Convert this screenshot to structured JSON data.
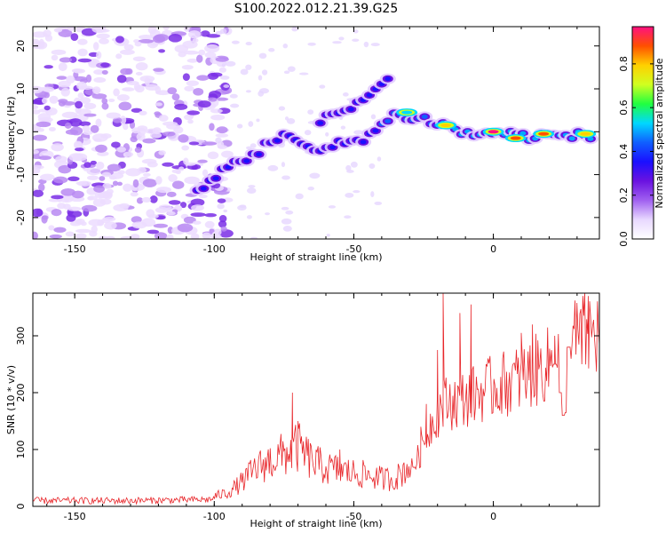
{
  "title": "S100.2022.012.21.39.G25",
  "colors": {
    "snr_line": "#e8262a",
    "spectrum_low": "#a070e8",
    "colormap": [
      "#ffffff",
      "#e8d8ff",
      "#a060f0",
      "#6a12e0",
      "#1a10ff",
      "#1060ff",
      "#00d8ff",
      "#20ff40",
      "#d0ff20",
      "#ffd000",
      "#ff5000",
      "#ff1080"
    ]
  },
  "chart_data": [
    {
      "type": "heatmap",
      "name": "spectrogram",
      "xlabel": "Height of straight line (km)",
      "ylabel": "Frequency (Hz)",
      "xlim": [
        -165,
        38
      ],
      "ylim": [
        -25,
        24.5
      ],
      "xticks": [
        -150,
        -100,
        -50,
        0
      ],
      "yticks": [
        -20,
        -10,
        0,
        10,
        20
      ],
      "colorbar": {
        "label": "Normalized spectral amplitude",
        "range": [
          0,
          0.97
        ],
        "ticks": [
          "0.0",
          "0.2",
          "0.4",
          "0.6",
          "0.8"
        ]
      },
      "ridge": [
        {
          "x": -105,
          "y": -14
        },
        {
          "x": -95,
          "y": -8
        },
        {
          "x": -85,
          "y": -5
        },
        {
          "x": -75,
          "y": 0
        },
        {
          "x": -65,
          "y": -5
        },
        {
          "x": -55,
          "y": -3
        },
        {
          "x": -45,
          "y": -1
        },
        {
          "x": -35,
          "y": 4
        },
        {
          "x": -25,
          "y": 3
        },
        {
          "x": -15,
          "y": 1
        },
        {
          "x": -8,
          "y": -1
        },
        {
          "x": 0,
          "y": 0
        },
        {
          "x": 10,
          "y": -1
        },
        {
          "x": 20,
          "y": -1
        },
        {
          "x": 35,
          "y": -1
        }
      ],
      "upper_branch": [
        {
          "x": -60,
          "y": 3
        },
        {
          "x": -50,
          "y": 6
        },
        {
          "x": -42,
          "y": 10
        },
        {
          "x": -37,
          "y": 13
        }
      ],
      "peaks": [
        {
          "x": -31,
          "y": 4.5,
          "amplitude": 0.55
        },
        {
          "x": -17,
          "y": 1.5,
          "amplitude": 0.75
        },
        {
          "x": 0,
          "y": 0,
          "amplitude": 0.95
        },
        {
          "x": 8,
          "y": -1.5,
          "amplitude": 0.9
        },
        {
          "x": 18,
          "y": -0.5,
          "amplitude": 0.9
        },
        {
          "x": 33,
          "y": -0.5,
          "amplitude": 0.8
        }
      ]
    },
    {
      "type": "line",
      "name": "snr",
      "xlabel": "Height of straight line (km)",
      "ylabel": "SNR (10 * v/v)",
      "xlim": [
        -165,
        38
      ],
      "ylim": [
        0,
        375
      ],
      "xticks": [
        -150,
        -100,
        -50,
        0
      ],
      "yticks": [
        0,
        100,
        200,
        300
      ],
      "envelope": [
        {
          "x": -165,
          "y": 10
        },
        {
          "x": -130,
          "y": 10
        },
        {
          "x": -102,
          "y": 12
        },
        {
          "x": -95,
          "y": 20
        },
        {
          "x": -90,
          "y": 35
        },
        {
          "x": -85,
          "y": 55
        },
        {
          "x": -80,
          "y": 65
        },
        {
          "x": -75,
          "y": 75
        },
        {
          "x": -70,
          "y": 85
        },
        {
          "x": -65,
          "y": 65
        },
        {
          "x": -60,
          "y": 55
        },
        {
          "x": -55,
          "y": 52
        },
        {
          "x": -50,
          "y": 48
        },
        {
          "x": -45,
          "y": 45
        },
        {
          "x": -40,
          "y": 40
        },
        {
          "x": -35,
          "y": 40
        },
        {
          "x": -30,
          "y": 60
        },
        {
          "x": -26,
          "y": 95
        },
        {
          "x": -22,
          "y": 150
        },
        {
          "x": -18,
          "y": 180
        },
        {
          "x": -10,
          "y": 190
        },
        {
          "x": 0,
          "y": 210
        },
        {
          "x": 10,
          "y": 225
        },
        {
          "x": 20,
          "y": 250
        },
        {
          "x": 25,
          "y": 270
        },
        {
          "x": 30,
          "y": 295
        },
        {
          "x": 38,
          "y": 305
        }
      ],
      "spikes": [
        {
          "x": -72,
          "y": 200
        },
        {
          "x": -70,
          "y": 150
        },
        {
          "x": -55,
          "y": 100
        },
        {
          "x": -26,
          "y": 140
        },
        {
          "x": -24,
          "y": 180
        },
        {
          "x": -20,
          "y": 275
        },
        {
          "x": -18,
          "y": 375
        },
        {
          "x": -12,
          "y": 340
        },
        {
          "x": -8,
          "y": 355
        },
        {
          "x": 10,
          "y": 305
        },
        {
          "x": 14,
          "y": 320
        },
        {
          "x": 22,
          "y": 300
        },
        {
          "x": 34,
          "y": 370
        }
      ],
      "dip": [
        {
          "x": 22,
          "y": 250
        },
        {
          "x": 24,
          "y": 200
        },
        {
          "x": 25,
          "y": 160
        },
        {
          "x": 26,
          "y": 165
        },
        {
          "x": 27,
          "y": 280
        }
      ]
    }
  ]
}
